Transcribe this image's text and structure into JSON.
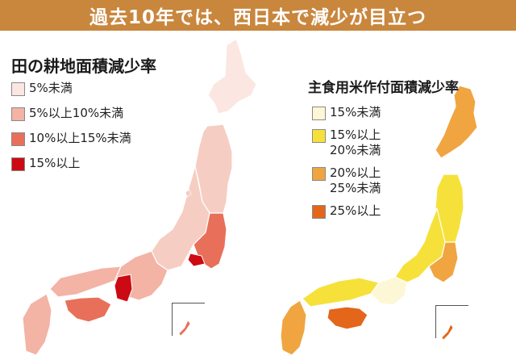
{
  "header": {
    "title": "過去10年では、西日本で減少が目立つ"
  },
  "left_map": {
    "title": "田の耕地面積減少率",
    "legend": [
      {
        "label": "5%未満",
        "color": "#fbe6e1"
      },
      {
        "label": "5%以上10%未満",
        "color": "#f3b3a5"
      },
      {
        "label": "10%以上15%未満",
        "color": "#e8705a"
      },
      {
        "label": "15%以上",
        "color": "#cc0a14"
      }
    ],
    "region_colors": {
      "hokkaido": "#fbe6e1",
      "tohoku": "#f6cdc2",
      "kanto": "#e8705a",
      "tokyo": "#cc0a14",
      "chubu": "#f6cdc2",
      "kansai": "#f3b3a5",
      "nara": "#cc0a14",
      "chugoku": "#f3b3a5",
      "shikoku": "#e8705a",
      "kyushu": "#f3b3a5",
      "okinawa": "#e8705a"
    }
  },
  "right_map": {
    "title": "主食用米作付面積減少率",
    "legend": [
      {
        "label": "15%未満",
        "color": "#fdf7d6"
      },
      {
        "label": "15%以上\n20%未満",
        "color": "#f6e13a"
      },
      {
        "label": "20%以上\n25%未満",
        "color": "#f0a540"
      },
      {
        "label": "25%以上",
        "color": "#e3661a"
      }
    ],
    "region_colors": {
      "hokkaido": "#f0a540",
      "tohoku": "#f6e13a",
      "kanto": "#f0a540",
      "chubu": "#f6e13a",
      "kansai": "#fdf7d6",
      "chugoku": "#f6e13a",
      "shikoku": "#e3661a",
      "kyushu": "#f0a540",
      "okinawa": "#e3661a"
    }
  }
}
